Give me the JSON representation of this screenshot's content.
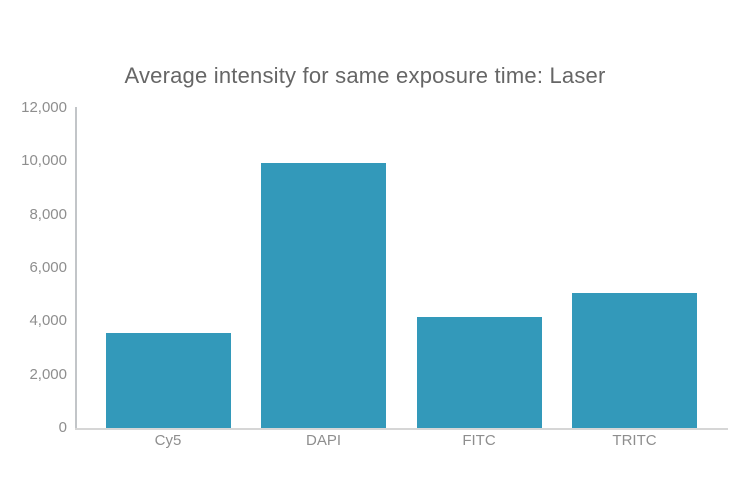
{
  "chart_data": {
    "type": "bar",
    "title": "Average intensity for same exposure time: Laser",
    "categories": [
      "Cy5",
      "DAPI",
      "FITC",
      "TRITC"
    ],
    "values": [
      3550,
      9950,
      4150,
      5050
    ],
    "xlabel": "",
    "ylabel": "",
    "ylim": [
      0,
      12000
    ],
    "y_ticks": [
      0,
      2000,
      4000,
      6000,
      8000,
      10000,
      12000
    ],
    "y_tick_labels": [
      "0",
      "2,000",
      "4,000",
      "6,000",
      "8,000",
      "10,000",
      "12,000"
    ],
    "grid": false,
    "legend": "none",
    "colors": {
      "bar": "#3399ba",
      "title": "#666666",
      "tick_label": "#8e8e8e",
      "category_label": "#8e8e8e",
      "y_axis_line": "#c2c5c8",
      "x_axis_line": "#d6d6d6",
      "background": "#ffffff"
    }
  }
}
